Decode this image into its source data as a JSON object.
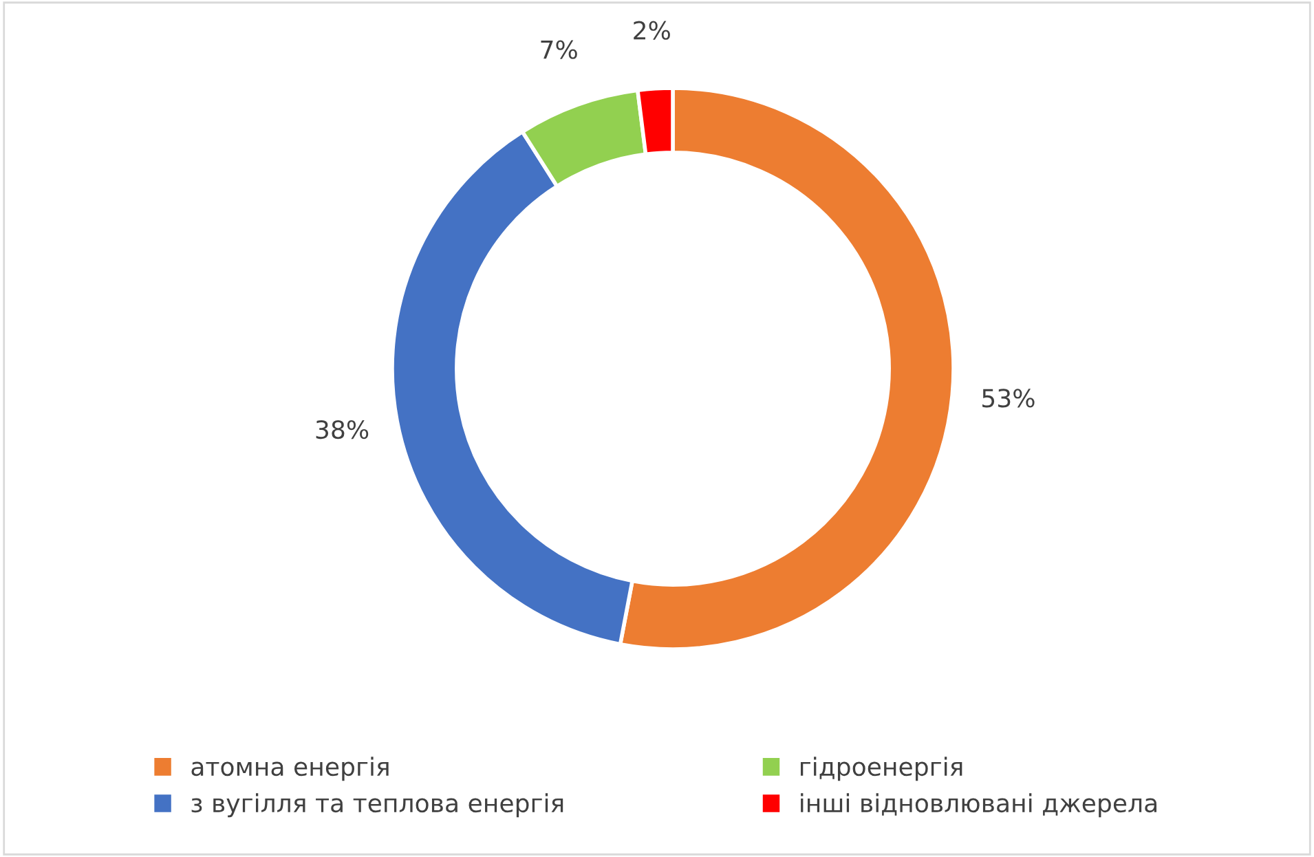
{
  "chart_data": {
    "type": "donut",
    "categories": [
      "атомна енергія",
      "з вугілля та теплова енергія",
      "гідроенергія",
      "інші відновлювані джерела"
    ],
    "values": [
      53,
      38,
      7,
      2
    ],
    "colors": [
      "#ed7d31",
      "#4472c4",
      "#92d050",
      "#ff0000"
    ],
    "value_labels": [
      "53%",
      "38%",
      "7%",
      "2%"
    ],
    "legend": "bottom"
  }
}
